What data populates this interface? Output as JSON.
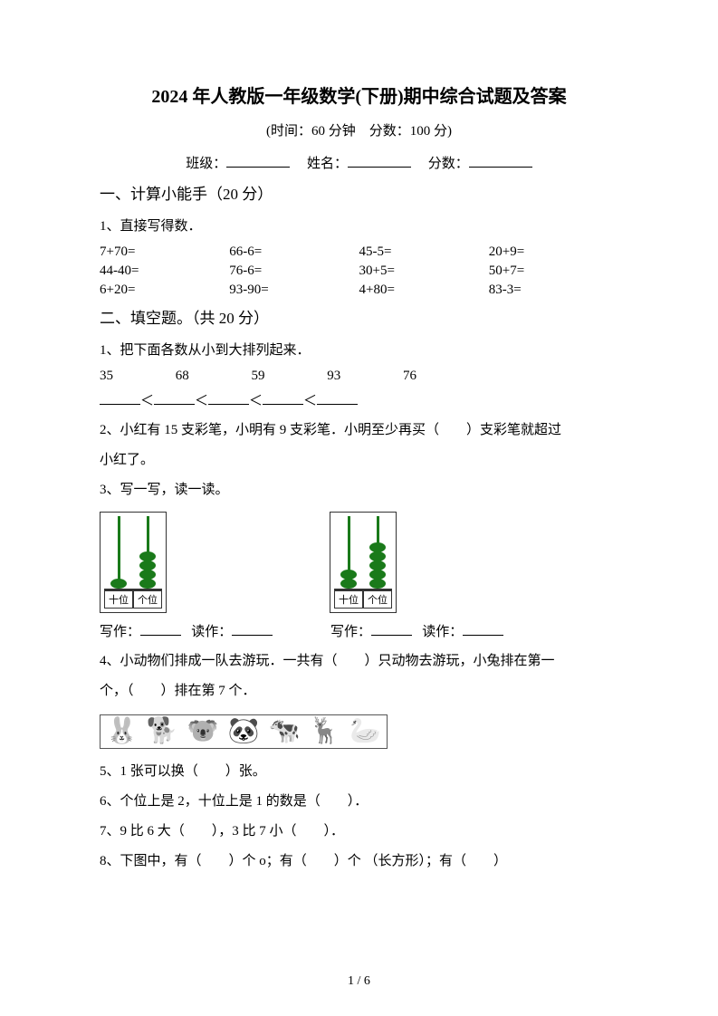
{
  "title": "2024 年人教版一年级数学(下册)期中综合试题及答案",
  "subtitle": "(时间：60 分钟　分数：100 分)",
  "info": {
    "class_label": "班级：",
    "name_label": "姓名：",
    "score_label": "分数："
  },
  "section1": {
    "header": "一、计算小能手（20 分）",
    "q1_label": "1、直接写得数．",
    "rows": [
      [
        "7+70=",
        "66-6=",
        "45-5=",
        "20+9="
      ],
      [
        "44-40=",
        "76-6=",
        "30+5=",
        "50+7="
      ],
      [
        "6+20=",
        "93-90=",
        "4+80=",
        "83-3="
      ]
    ]
  },
  "section2": {
    "header": "二、填空题。（共 20 分）",
    "q1_label": "1、把下面各数从小到大排列起来．",
    "q1_numbers": [
      "35",
      "68",
      "59",
      "93",
      "76"
    ],
    "q1_compare_sep": "＜",
    "q2_text_a": "2、小红有 15 支彩笔，小明有 9 支彩笔．小明至少再买（　　）支彩笔就超过",
    "q2_text_b": "小红了。",
    "q3_label": "3、写一写，读一读。",
    "abacus": {
      "tens_label": "十位",
      "ones_label": "个位",
      "a1": {
        "tens_beads": 1,
        "ones_beads": 4
      },
      "a2": {
        "tens_beads": 2,
        "ones_beads": 5
      }
    },
    "write_label": "写作：",
    "read_label": "读作：",
    "q4_text_a": "4、小动物们排成一队去游玩．一共有（　　）只动物去游玩，小兔排在第一",
    "q4_text_b": "个，（　　）排在第 7 个．",
    "animals": [
      "🐰",
      "🐕",
      "🐨",
      "🐼",
      "🐄",
      "🦌",
      "🦢"
    ],
    "q5_text": "5、1 张可以换（　　）张。",
    "q6_text": "6、个位上是 2，十位上是 1 的数是（　　）．",
    "q7_text": "7、9 比 6 大（　　），3 比 7 小（　　）．",
    "q8_text": "8、下图中，有（　　）个 o；有（　　）个 （长方形）；有（　　）"
  },
  "page_number": "1 / 6"
}
